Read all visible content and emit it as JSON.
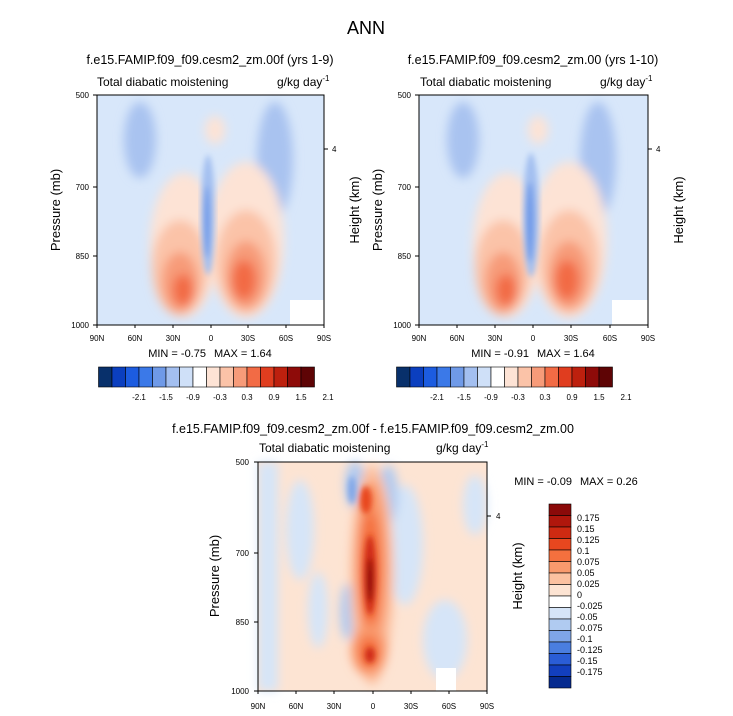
{
  "chart_data": {
    "title": "ANN",
    "panels": [
      {
        "type": "heatmap",
        "title": "f.e15.FAMIP.f09_f09.cesm2_zm.00f (yrs 1-9)",
        "subtitle_left": "Total diabatic moistening",
        "units": "g/kg day",
        "units_exp": "-1",
        "ylabel": "Pressure (mb)",
        "ylabel_right": "Height (km)",
        "right_ticks": [
          "4"
        ],
        "x_ticks": [
          "90N",
          "60N",
          "30N",
          "0",
          "30S",
          "60S",
          "90S"
        ],
        "y_ticks": [
          "500",
          "700",
          "850",
          "1000"
        ],
        "min_label": "MIN = ",
        "min_value": "-0.75",
        "max_label": "MAX = ",
        "max_value": "1.64",
        "colorbar_labels": [
          "-2.1",
          "-1.5",
          "-0.9",
          "-0.3",
          "0.3",
          "0.9",
          "1.5",
          "2.1"
        ]
      },
      {
        "type": "heatmap",
        "title": "f.e15.FAMIP.f09_f09.cesm2_zm.00 (yrs 1-10)",
        "subtitle_left": "Total diabatic moistening",
        "units": "g/kg day",
        "units_exp": "-1",
        "ylabel": "Pressure (mb)",
        "ylabel_right": "Height (km)",
        "right_ticks": [
          "4"
        ],
        "x_ticks": [
          "90N",
          "60N",
          "30N",
          "0",
          "30S",
          "60S",
          "90S"
        ],
        "y_ticks": [
          "500",
          "700",
          "850",
          "1000"
        ],
        "min_label": "MIN = ",
        "min_value": "-0.91",
        "max_label": "MAX = ",
        "max_value": "1.64",
        "colorbar_labels": [
          "-2.1",
          "-1.5",
          "-0.9",
          "-0.3",
          "0.3",
          "0.9",
          "1.5",
          "2.1"
        ]
      },
      {
        "type": "heatmap",
        "title": "f.e15.FAMIP.f09_f09.cesm2_zm.00f - f.e15.FAMIP.f09_f09.cesm2_zm.00",
        "subtitle_left": "Total diabatic moistening",
        "units": "g/kg day",
        "units_exp": "-1",
        "ylabel": "Pressure (mb)",
        "ylabel_right": "Height (km)",
        "right_ticks": [
          "4"
        ],
        "x_ticks": [
          "90N",
          "60N",
          "30N",
          "0",
          "30S",
          "60S",
          "90S"
        ],
        "y_ticks": [
          "500",
          "700",
          "850",
          "1000"
        ],
        "min_label": "MIN = ",
        "min_value": "-0.09",
        "max_label": "MAX = ",
        "max_value": "0.26",
        "colorbar_labels": [
          "0.175",
          "0.15",
          "0.125",
          "0.1",
          "0.075",
          "0.05",
          "0.025",
          "0",
          "-0.025",
          "-0.05",
          "-0.075",
          "-0.1",
          "-0.125",
          "-0.15",
          "-0.175"
        ]
      }
    ],
    "colors": {
      "abs_scale": [
        "#08306b",
        "#0b3fbf",
        "#1c5ce0",
        "#3b79e8",
        "#6f9ae8",
        "#a3bff0",
        "#cfe0f8",
        "#ffffff",
        "#fde3d5",
        "#fbc3a8",
        "#f79b79",
        "#f26b45",
        "#e03d1f",
        "#bd200e",
        "#8e0b09",
        "#5e0405"
      ],
      "diff_scale": [
        "#8b0a09",
        "#b0170c",
        "#cf2a12",
        "#e8471f",
        "#f4703e",
        "#f99a6d",
        "#fcc1a0",
        "#fde4d3",
        "#ffffff",
        "#d6e5f8",
        "#b0cbf1",
        "#7ea5e8",
        "#4a7ee0",
        "#2a5dd6",
        "#123fbe",
        "#052a8f"
      ]
    }
  }
}
